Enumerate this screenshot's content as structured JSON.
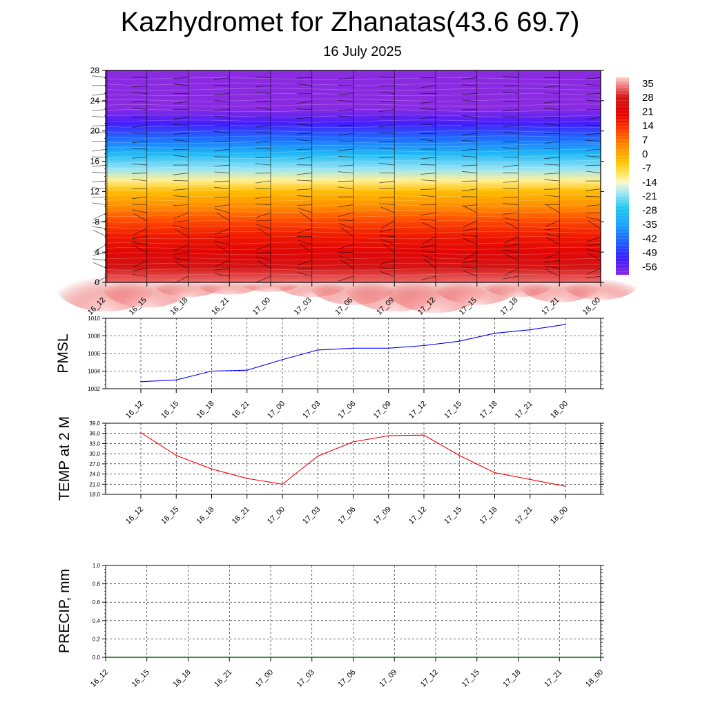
{
  "title": "Kazhydromet for Zhanatas(43.6 69.7)",
  "subtitle": "16 July 2025",
  "chart_data": [
    {
      "id": "cross_section",
      "type": "heatmap",
      "x_ticks": [
        "16_12",
        "16_15",
        "16_18",
        "16_21",
        "17_00",
        "17_03",
        "17_06",
        "17_09",
        "17_12",
        "17_15",
        "17_18",
        "17_21",
        "18_00"
      ],
      "y_ticks": [
        "0",
        "4",
        "8",
        "12",
        "16",
        "20",
        "24",
        "28"
      ],
      "ylim": [
        0,
        28
      ],
      "colorbar_labels": [
        "35",
        "28",
        "21",
        "14",
        "7",
        "0",
        "-7",
        "-14",
        "-21",
        "-28",
        "-35",
        "-42",
        "-49",
        "-56"
      ],
      "colorbar_range": [
        -60,
        38
      ],
      "temperature_profile": [
        {
          "h": 0,
          "t": 33
        },
        {
          "h": 2,
          "t": 28
        },
        {
          "h": 4,
          "t": 22
        },
        {
          "h": 6,
          "t": 17
        },
        {
          "h": 8,
          "t": 11
        },
        {
          "h": 10,
          "t": 4
        },
        {
          "h": 12,
          "t": -3
        },
        {
          "h": 13.5,
          "t": -12
        },
        {
          "h": 15,
          "t": -20
        },
        {
          "h": 17,
          "t": -30
        },
        {
          "h": 19,
          "t": -42
        },
        {
          "h": 21,
          "t": -53
        },
        {
          "h": 23,
          "t": -60
        },
        {
          "h": 28,
          "t": -60
        }
      ],
      "surface_warm_by_time": [
        0.85,
        0.7,
        0.3,
        0.2,
        0.1,
        0.3,
        0.6,
        0.85,
        0.9,
        0.6,
        0.3,
        0.5,
        0.4
      ],
      "colors": {
        "stops": [
          {
            "v": -60,
            "c": "#8a2be2"
          },
          {
            "v": -52,
            "c": "#3a1cff"
          },
          {
            "v": -44,
            "c": "#1e5cff"
          },
          {
            "v": -36,
            "c": "#1e9bff"
          },
          {
            "v": -27,
            "c": "#1ec8f0"
          },
          {
            "v": -19,
            "c": "#a8e8f5"
          },
          {
            "v": -14,
            "c": "#fff8c8"
          },
          {
            "v": -10,
            "c": "#ffe860"
          },
          {
            "v": -4,
            "c": "#ffc400"
          },
          {
            "v": 4,
            "c": "#ff8c00"
          },
          {
            "v": 12,
            "c": "#ff3c00"
          },
          {
            "v": 20,
            "c": "#e60000"
          },
          {
            "v": 28,
            "c": "#d41414"
          },
          {
            "v": 34,
            "c": "#f08080"
          },
          {
            "v": 38,
            "c": "#ffd0d0"
          }
        ]
      }
    },
    {
      "id": "pmsl",
      "type": "line",
      "ylabel": "PMSL",
      "categories": [
        "16_12",
        "16_15",
        "16_18",
        "16_21",
        "17_00",
        "17_03",
        "17_06",
        "17_09",
        "17_12",
        "17_15",
        "17_18",
        "17_21",
        "18_00"
      ],
      "y_ticks": [
        "1002",
        "1004",
        "1006",
        "1008",
        "1010"
      ],
      "ylim": [
        1002,
        1010
      ],
      "values": [
        1002.8,
        1003.0,
        1004.0,
        1004.1,
        1005.3,
        1006.4,
        1006.6,
        1006.6,
        1006.9,
        1007.4,
        1008.3,
        1008.7,
        1009.3
      ],
      "color": "#0000ff"
    },
    {
      "id": "temp2m",
      "type": "line",
      "ylabel": "TEMP at 2 M",
      "categories": [
        "16_12",
        "16_15",
        "16_18",
        "16_21",
        "17_00",
        "17_03",
        "17_06",
        "17_09",
        "17_12",
        "17_15",
        "17_18",
        "17_21",
        "18_00"
      ],
      "y_ticks": [
        "18.0",
        "21.0",
        "24.0",
        "27.0",
        "30.0",
        "33.0",
        "36.0",
        "39.0"
      ],
      "ylim": [
        18,
        39
      ],
      "values": [
        36.2,
        29.5,
        25.5,
        22.7,
        21.0,
        29.3,
        33.5,
        35.3,
        35.5,
        29.5,
        24.4,
        22.4,
        20.4
      ],
      "color": "#ff0000"
    },
    {
      "id": "precip",
      "type": "line",
      "ylabel": "PRECIP, mm",
      "categories": [
        "16_12",
        "16_15",
        "16_18",
        "16_21",
        "17_00",
        "17_03",
        "17_06",
        "17_09",
        "17_12",
        "17_15",
        "17_18",
        "17_21",
        "18_00"
      ],
      "y_ticks": [
        "0.0",
        "0.2",
        "0.4",
        "0.6",
        "0.8",
        "1.0"
      ],
      "ylim": [
        0,
        1
      ],
      "values": [
        0,
        0,
        0,
        0,
        0,
        0,
        0,
        0,
        0,
        0,
        0,
        0,
        0
      ],
      "color": "#006400"
    }
  ]
}
